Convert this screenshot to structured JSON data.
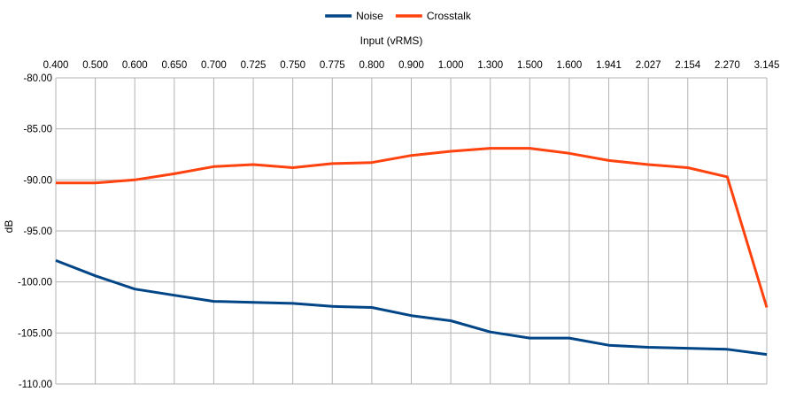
{
  "chart_data": {
    "type": "line",
    "title": "",
    "xlabel": "Input (vRMS)",
    "ylabel": "dB",
    "x_position": "top",
    "legend_position": "top-center",
    "grid": true,
    "ylim": [
      -110,
      -80
    ],
    "y_ticks": [
      "-80.00",
      "-85.00",
      "-90.00",
      "-95.00",
      "-100.00",
      "-105.00",
      "-110.00"
    ],
    "categories": [
      "0.400",
      "0.500",
      "0.600",
      "0.650",
      "0.700",
      "0.725",
      "0.750",
      "0.775",
      "0.800",
      "0.900",
      "1.000",
      "1.300",
      "1.500",
      "1.600",
      "1.941",
      "2.027",
      "2.154",
      "2.270",
      "3.145"
    ],
    "series": [
      {
        "name": "Noise",
        "color": "#004586",
        "values": [
          -97.9,
          -99.4,
          -100.7,
          -101.3,
          -101.9,
          -102.0,
          -102.1,
          -102.4,
          -102.5,
          -103.3,
          -103.8,
          -104.9,
          -105.5,
          -105.5,
          -106.2,
          -106.4,
          -106.5,
          -106.6,
          -107.1
        ]
      },
      {
        "name": "Crosstalk",
        "color": "#ff420e",
        "values": [
          -90.3,
          -90.3,
          -90.0,
          -89.4,
          -88.7,
          -88.5,
          -88.8,
          -88.4,
          -88.3,
          -87.6,
          -87.2,
          -86.9,
          -86.9,
          -87.4,
          -88.1,
          -88.5,
          -88.8,
          -89.7,
          -102.5
        ]
      }
    ]
  }
}
